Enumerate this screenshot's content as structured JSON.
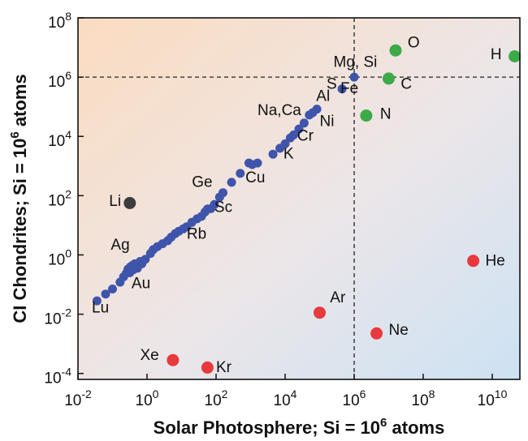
{
  "chart_data": {
    "type": "scatter",
    "x_scale": "log",
    "y_scale": "log",
    "xlim_exp": [
      -2,
      10.8
    ],
    "ylim_exp": [
      -4.2,
      8
    ],
    "xlabel": {
      "main": "Solar Photosphere; Si = 10",
      "sup": "6",
      "tail": " atoms"
    },
    "ylabel": {
      "main": "CI Chondrites; Si = 10",
      "sup": "6",
      "tail": " atoms"
    },
    "x_ticks": [
      {
        "base": "10",
        "exp": "-2",
        "value": -2
      },
      {
        "base": "10",
        "exp": "0",
        "value": 0
      },
      {
        "base": "10",
        "exp": "2",
        "value": 2
      },
      {
        "base": "10",
        "exp": "4",
        "value": 4
      },
      {
        "base": "10",
        "exp": "6",
        "value": 6
      },
      {
        "base": "10",
        "exp": "8",
        "value": 8
      },
      {
        "base": "10",
        "exp": "10",
        "value": 10
      }
    ],
    "y_ticks": [
      {
        "base": "10",
        "exp": "-4",
        "value": -4
      },
      {
        "base": "10",
        "exp": "-2",
        "value": -2
      },
      {
        "base": "10",
        "exp": "0",
        "value": 0
      },
      {
        "base": "10",
        "exp": "2",
        "value": 2
      },
      {
        "base": "10",
        "exp": "4",
        "value": 4
      },
      {
        "base": "10",
        "exp": "6",
        "value": 6
      },
      {
        "base": "10",
        "exp": "8",
        "value": 8
      }
    ],
    "reference_lines": {
      "x_exp": 6,
      "y_exp": 6
    },
    "colors": {
      "refractory": "#3f54ab",
      "volatile_gas": "#e8393c",
      "volatile_ice": "#3daa4a",
      "lithium": "#3d3d3d",
      "background_low": "#fbdcc0",
      "background_high": "#cde2f3"
    },
    "series": [
      {
        "group": "refractory",
        "points": [
          [
            -1.45,
            -1.55
          ],
          [
            -1.2,
            -1.32
          ],
          [
            -1.0,
            -1.15
          ],
          [
            -0.78,
            -0.92
          ],
          [
            -0.68,
            -0.74
          ],
          [
            -0.6,
            -0.62
          ],
          [
            -0.55,
            -0.48
          ],
          [
            -0.48,
            -0.4
          ],
          [
            -0.42,
            -0.35
          ],
          [
            -0.35,
            -0.3
          ],
          [
            -0.5,
            -0.6
          ],
          [
            -0.4,
            -0.5
          ],
          [
            -0.28,
            -0.45
          ],
          [
            -0.15,
            -0.3
          ],
          [
            -0.2,
            -0.22
          ],
          [
            -0.05,
            -0.15
          ],
          [
            0.1,
            0.05
          ],
          [
            0.18,
            0.18
          ],
          [
            0.3,
            0.28
          ],
          [
            0.45,
            0.38
          ],
          [
            0.6,
            0.48
          ],
          [
            0.7,
            0.6
          ],
          [
            0.82,
            0.72
          ],
          [
            0.92,
            0.8
          ],
          [
            1.05,
            0.88
          ],
          [
            1.15,
            0.95
          ],
          [
            1.3,
            1.1
          ],
          [
            1.45,
            1.22
          ],
          [
            1.58,
            1.3
          ],
          [
            1.68,
            1.45
          ],
          [
            1.75,
            1.55
          ],
          [
            1.85,
            1.56
          ],
          [
            1.95,
            1.7
          ],
          [
            2.1,
            1.95
          ],
          [
            2.2,
            2.1
          ],
          [
            2.45,
            2.45
          ],
          [
            2.7,
            2.75
          ],
          [
            2.95,
            3.1
          ],
          [
            3.05,
            3.05
          ],
          [
            3.2,
            3.1
          ],
          [
            3.65,
            3.4
          ],
          [
            3.85,
            3.6
          ],
          [
            4.0,
            3.75
          ],
          [
            4.15,
            3.95
          ],
          [
            4.25,
            4.05
          ],
          [
            4.4,
            4.25
          ],
          [
            4.55,
            4.45
          ],
          [
            4.7,
            4.72
          ],
          [
            4.8,
            4.8
          ],
          [
            4.92,
            4.92
          ],
          [
            5.65,
            5.6
          ],
          [
            6.0,
            6.0
          ]
        ]
      },
      {
        "group": "volatile_gas",
        "points": [
          [
            0.75,
            -3.55
          ],
          [
            1.75,
            -3.8
          ],
          [
            5.0,
            -1.95
          ],
          [
            6.65,
            -2.65
          ],
          [
            9.45,
            -0.2
          ]
        ]
      },
      {
        "group": "volatile_ice",
        "points": [
          [
            6.35,
            4.7
          ],
          [
            7.0,
            5.95
          ],
          [
            7.2,
            6.9
          ],
          [
            10.65,
            6.7
          ]
        ]
      },
      {
        "group": "lithium",
        "points": [
          [
            -0.5,
            1.75
          ]
        ]
      }
    ],
    "labels": [
      {
        "text": "Lu",
        "x": -1.6,
        "y": -1.95
      },
      {
        "text": "Au",
        "x": -0.45,
        "y": -1.12
      },
      {
        "text": "Ag",
        "x": -1.05,
        "y": 0.18
      },
      {
        "text": "Rb",
        "x": 1.15,
        "y": 0.55
      },
      {
        "text": "Sc",
        "x": 1.95,
        "y": 1.45
      },
      {
        "text": "Li",
        "x": -1.1,
        "y": 1.65
      },
      {
        "text": "Ge",
        "x": 1.3,
        "y": 2.3
      },
      {
        "text": "Cu",
        "x": 2.85,
        "y": 2.45
      },
      {
        "text": "K",
        "x": 3.95,
        "y": 3.25
      },
      {
        "text": "Cr",
        "x": 4.35,
        "y": 3.85
      },
      {
        "text": "Ni",
        "x": 5.0,
        "y": 4.35
      },
      {
        "text": "Na,Ca",
        "x": 3.2,
        "y": 4.72
      },
      {
        "text": "Al",
        "x": 4.9,
        "y": 5.2
      },
      {
        "text": "S",
        "x": 5.2,
        "y": 5.6
      },
      {
        "text": "Fe",
        "x": 5.6,
        "y": 5.45
      },
      {
        "text": "Mg, Si",
        "x": 5.4,
        "y": 6.35
      },
      {
        "text": "O",
        "x": 7.55,
        "y": 7.0
      },
      {
        "text": "C",
        "x": 7.35,
        "y": 5.6
      },
      {
        "text": "N",
        "x": 6.75,
        "y": 4.6
      },
      {
        "text": "H",
        "x": 9.95,
        "y": 6.6
      },
      {
        "text": "He",
        "x": 9.8,
        "y": -0.35
      },
      {
        "text": "Ar",
        "x": 5.3,
        "y": -1.6
      },
      {
        "text": "Ne",
        "x": 7.0,
        "y": -2.7
      },
      {
        "text": "Xe",
        "x": -0.2,
        "y": -3.55
      },
      {
        "text": "Kr",
        "x": 2.0,
        "y": -3.95
      }
    ]
  }
}
